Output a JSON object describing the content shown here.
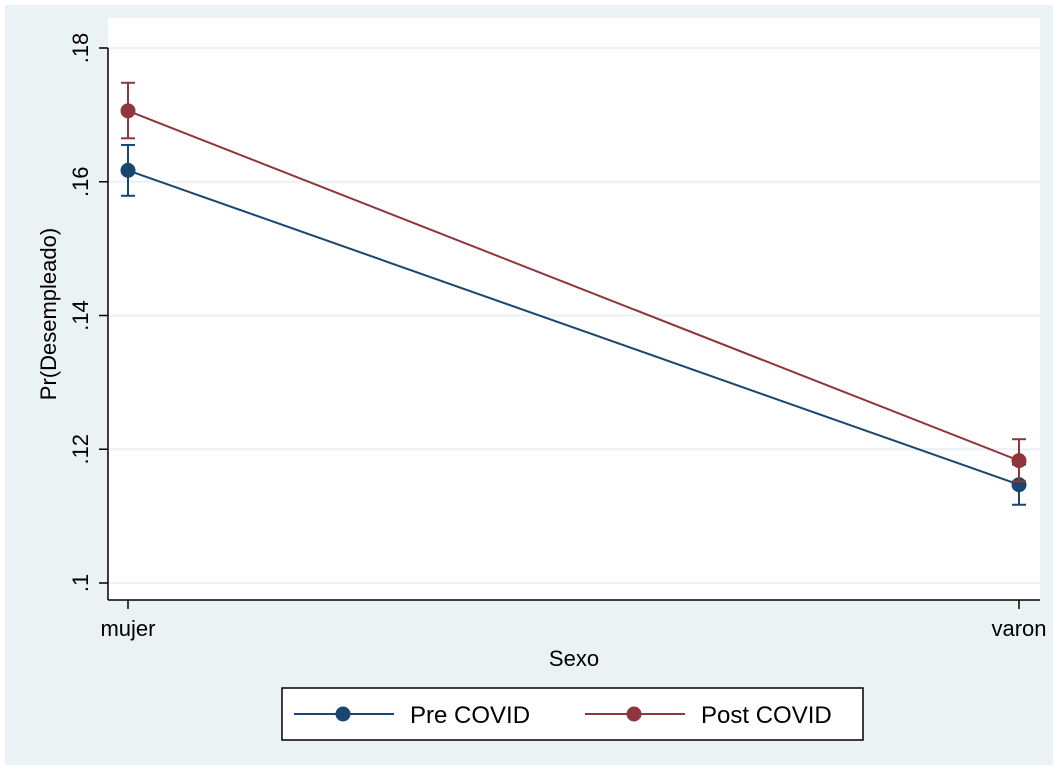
{
  "chart_data": {
    "type": "line",
    "categories": [
      "mujer",
      "varon"
    ],
    "xlabel": "Sexo",
    "ylabel": "Pr(Desempleado)",
    "ylim": [
      0.1,
      0.18
    ],
    "yticks": [
      0.1,
      0.12,
      0.14,
      0.16,
      0.18
    ],
    "ytick_labels": [
      ".1",
      ".12",
      ".14",
      ".16",
      ".18"
    ],
    "grid": true,
    "legend_position": "bottom",
    "series": [
      {
        "name": "Pre COVID",
        "color": "#1a476f",
        "values": [
          0.1617,
          0.1147
        ],
        "ci_lower": [
          0.1579,
          0.1117
        ],
        "ci_upper": [
          0.1655,
          0.1177
        ]
      },
      {
        "name": "Post COVID",
        "color": "#90353b",
        "values": [
          0.1706,
          0.1183
        ],
        "ci_lower": [
          0.1665,
          0.1152
        ],
        "ci_upper": [
          0.1748,
          0.1215
        ]
      }
    ]
  },
  "colors": {
    "outer_background": "#eaf2f3",
    "plot_background": "#ffffff",
    "grid": "#eaf2f3",
    "axis": "#000000"
  }
}
